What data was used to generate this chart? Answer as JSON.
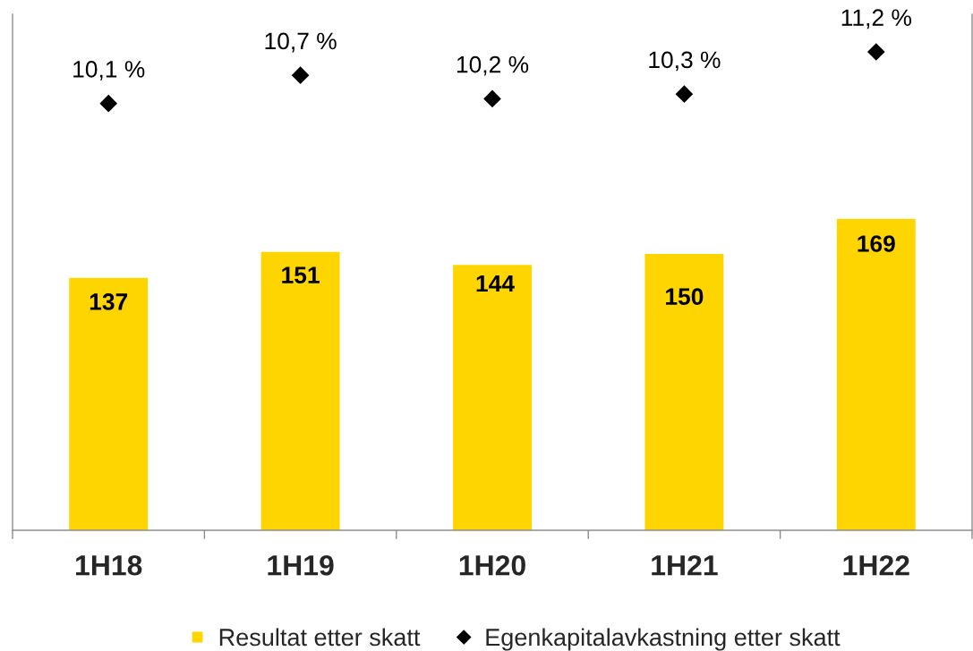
{
  "chart_data": {
    "type": "bar",
    "categories": [
      "1H18",
      "1H19",
      "1H20",
      "1H21",
      "1H22"
    ],
    "series": [
      {
        "name": "Resultat etter skatt",
        "color": "#ffd500",
        "values": [
          137,
          151,
          144,
          150,
          169
        ],
        "data_labels": true
      },
      {
        "name": "Egenkapitalavkastning etter skatt",
        "type": "scatter",
        "axis": "y2",
        "color": "#000000",
        "marker": "diamond",
        "values": [
          10.1,
          10.7,
          10.2,
          10.3,
          11.2
        ],
        "value_labels": [
          "10,1 %",
          "10,7 %",
          "10,2 %",
          "10,3 %",
          "11,2 %"
        ]
      }
    ],
    "ylim": [
      0,
      280
    ],
    "y2lim": [
      1,
      12
    ],
    "tick_labels": "x",
    "grid": false,
    "legend": "bottom"
  }
}
